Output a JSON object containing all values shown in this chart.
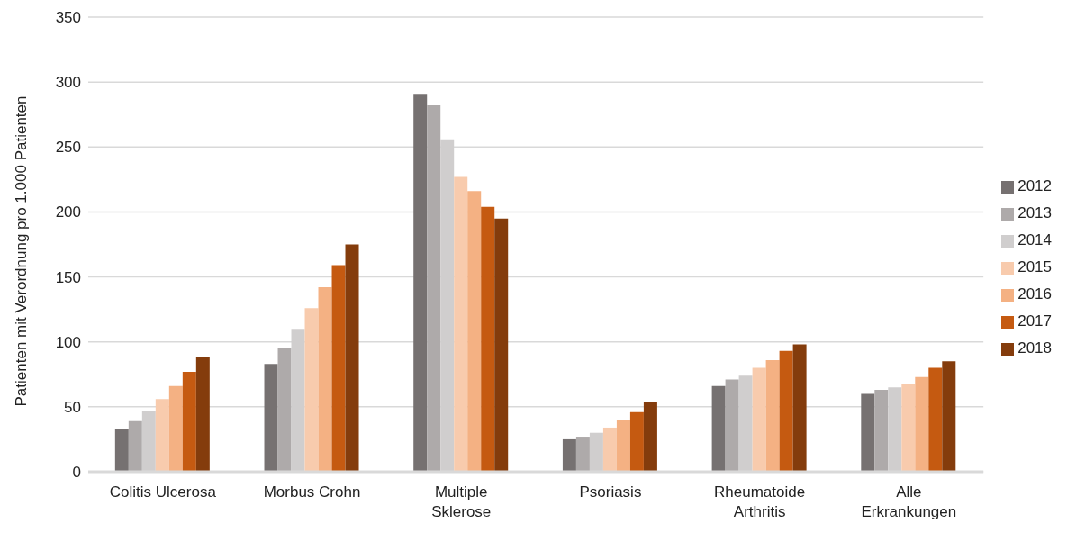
{
  "chart_data": {
    "type": "bar",
    "ylabel": "Patienten mit Verordnung pro 1.000 Patienten",
    "categories": [
      "Colitis Ulcerosa",
      "Morbus Crohn",
      "Multiple Sklerose",
      "Psoriasis",
      "Rheumatoide Arthritis",
      "Alle Erkrankungen"
    ],
    "series": [
      {
        "name": "2012",
        "color": "#767171",
        "values": [
          33,
          83,
          291,
          25,
          66,
          60
        ]
      },
      {
        "name": "2013",
        "color": "#aeaaaa",
        "values": [
          39,
          95,
          282,
          27,
          71,
          63
        ]
      },
      {
        "name": "2014",
        "color": "#d0cece",
        "values": [
          47,
          110,
          256,
          30,
          74,
          65
        ]
      },
      {
        "name": "2015",
        "color": "#f8cbad",
        "values": [
          56,
          126,
          227,
          34,
          80,
          68
        ]
      },
      {
        "name": "2016",
        "color": "#f4b183",
        "values": [
          66,
          142,
          216,
          40,
          86,
          73
        ]
      },
      {
        "name": "2017",
        "color": "#c55a11",
        "values": [
          77,
          159,
          204,
          46,
          93,
          80
        ]
      },
      {
        "name": "2018",
        "color": "#843c0c",
        "values": [
          88,
          175,
          195,
          54,
          98,
          85
        ]
      }
    ],
    "ylim": [
      0,
      350
    ],
    "yticks": [
      0,
      50,
      100,
      150,
      200,
      250,
      300,
      350
    ],
    "grid": "y",
    "legend": "right"
  }
}
